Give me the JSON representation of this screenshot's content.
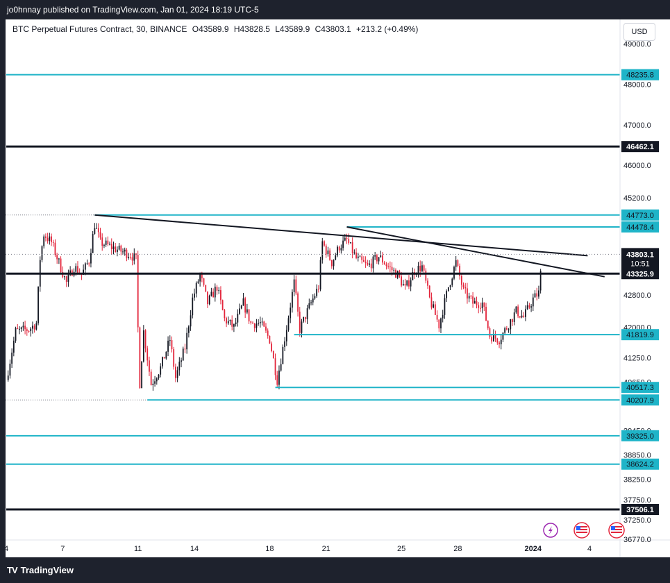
{
  "header": {
    "published_by": "jo0hnnay published on TradingView.com, Jan 01, 2024 18:19 UTC-5"
  },
  "legend": {
    "symbol": "BTC Perpetual Futures Contract, 30, BINANCE",
    "open": "O43589.9",
    "high": "H43828.5",
    "low": "L43589.9",
    "close": "C43803.1",
    "change": "+213.2 (+0.49%)"
  },
  "currency_button": "USD",
  "footer": {
    "brand": "TradingView"
  },
  "colors": {
    "cyan": "#1fb4c8",
    "black": "#131722",
    "up": "#131722",
    "down": "#e3253b"
  },
  "chart_data": {
    "type": "candlestick",
    "ylim": [
      36500,
      49500
    ],
    "y_ticks": [
      49000.0,
      48000.0,
      47000.0,
      46000.0,
      45200.0,
      42800.0,
      42000.0,
      41250.0,
      40650.0,
      39450.0,
      38850.0,
      38250.0,
      37750.0,
      37250.0,
      36770.0
    ],
    "x_ticks": [
      {
        "label": "4",
        "t": 0
      },
      {
        "label": "7",
        "t": 3
      },
      {
        "label": "11",
        "t": 7
      },
      {
        "label": "14",
        "t": 10
      },
      {
        "label": "18",
        "t": 14
      },
      {
        "label": "21",
        "t": 17
      },
      {
        "label": "25",
        "t": 21
      },
      {
        "label": "28",
        "t": 24
      },
      {
        "label": "2024",
        "t": 28,
        "bold": true
      },
      {
        "label": "4",
        "t": 31
      }
    ],
    "xlim": [
      0,
      31.5
    ],
    "horizontal_levels": [
      {
        "label": "48235.8",
        "value": 48235.8,
        "color": "cyan",
        "start_t": 0
      },
      {
        "label": "46462.1",
        "value": 46462.1,
        "color": "black",
        "start_t": 0
      },
      {
        "label": "44773.0",
        "value": 44773.0,
        "color": "cyan",
        "start_t": 4.7
      },
      {
        "label": "44478.4",
        "value": 44478.4,
        "color": "cyan",
        "start_t": 18.1
      },
      {
        "label": "43325.9",
        "value": 43325.9,
        "color": "black",
        "start_t": 0
      },
      {
        "label": "41819.9",
        "value": 41819.9,
        "color": "cyan",
        "start_t": 15.3
      },
      {
        "label": "40517.3",
        "value": 40517.3,
        "color": "cyan",
        "start_t": 14.3
      },
      {
        "label": "40207.9",
        "value": 40207.9,
        "color": "cyan",
        "start_t": 7.5
      },
      {
        "label": "39325.0",
        "value": 39325.0,
        "color": "cyan",
        "start_t": 0
      },
      {
        "label": "38624.2",
        "value": 38624.2,
        "color": "cyan",
        "start_t": 0
      },
      {
        "label": "37506.1",
        "value": 37506.1,
        "color": "black",
        "start_t": 0
      }
    ],
    "dotted_levels": [
      44773.0,
      40207.9
    ],
    "trendlines": [
      {
        "from": [
          4.7,
          44773.0
        ],
        "to": [
          30.9,
          43770.0
        ]
      },
      {
        "from": [
          18.1,
          44478.4
        ],
        "to": [
          31.8,
          43250.0
        ]
      }
    ],
    "current_price": {
      "label": "43803.1",
      "value": 43803.1,
      "countdown": "10:51"
    },
    "path": [
      [
        0,
        40700
      ],
      [
        0.5,
        41900
      ],
      [
        1.2,
        41950
      ],
      [
        1.6,
        42100
      ],
      [
        1.8,
        43700
      ],
      [
        2.0,
        44300
      ],
      [
        2.4,
        44100
      ],
      [
        2.8,
        43600
      ],
      [
        3.2,
        43100
      ],
      [
        3.6,
        43500
      ],
      [
        4.0,
        43300
      ],
      [
        4.4,
        43650
      ],
      [
        4.7,
        44550
      ],
      [
        5.0,
        44100
      ],
      [
        5.5,
        44000
      ],
      [
        6.0,
        43900
      ],
      [
        6.6,
        43800
      ],
      [
        6.95,
        43650
      ],
      [
        7.05,
        40300
      ],
      [
        7.3,
        41900
      ],
      [
        7.7,
        40600
      ],
      [
        8.2,
        41000
      ],
      [
        8.7,
        41700
      ],
      [
        9.0,
        40750
      ],
      [
        9.5,
        41500
      ],
      [
        9.9,
        42700
      ],
      [
        10.3,
        43300
      ],
      [
        10.7,
        42600
      ],
      [
        11.2,
        43000
      ],
      [
        11.6,
        42200
      ],
      [
        12.1,
        42000
      ],
      [
        12.6,
        42600
      ],
      [
        13.0,
        42100
      ],
      [
        13.5,
        42100
      ],
      [
        14.0,
        41700
      ],
      [
        14.4,
        40700
      ],
      [
        14.9,
        42000
      ],
      [
        15.3,
        43100
      ],
      [
        15.6,
        41950
      ],
      [
        16.1,
        42500
      ],
      [
        16.6,
        43000
      ],
      [
        16.8,
        44100
      ],
      [
        17.3,
        43600
      ],
      [
        17.7,
        44000
      ],
      [
        18.1,
        44150
      ],
      [
        18.6,
        43700
      ],
      [
        19.2,
        43500
      ],
      [
        19.8,
        43750
      ],
      [
        20.3,
        43500
      ],
      [
        20.8,
        43300
      ],
      [
        21.2,
        42950
      ],
      [
        21.7,
        43400
      ],
      [
        22.1,
        43500
      ],
      [
        22.5,
        42700
      ],
      [
        23.0,
        42050
      ],
      [
        23.5,
        43000
      ],
      [
        23.9,
        43600
      ],
      [
        24.3,
        42900
      ],
      [
        24.8,
        42600
      ],
      [
        25.3,
        42600
      ],
      [
        25.7,
        41800
      ],
      [
        26.2,
        41700
      ],
      [
        26.6,
        42000
      ],
      [
        27.1,
        42400
      ],
      [
        27.5,
        42250
      ],
      [
        28.0,
        42700
      ],
      [
        28.3,
        42850
      ],
      [
        28.5,
        43800
      ]
    ]
  }
}
